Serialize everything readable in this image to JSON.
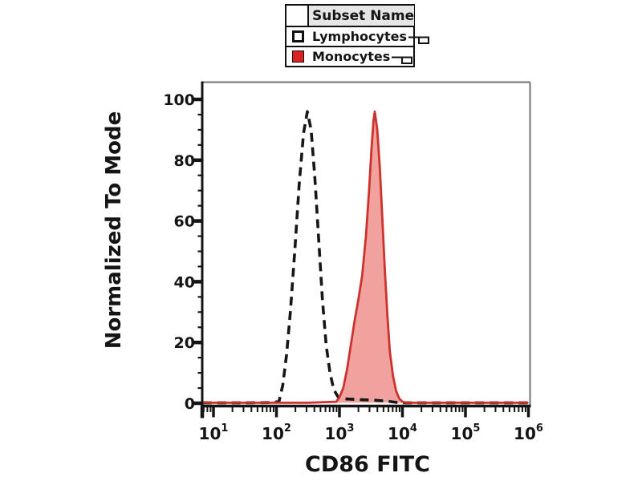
{
  "figure": {
    "background": "#ffffff",
    "plot_border_color": "#7f7f7f",
    "axis_color": "#141414"
  },
  "legend": {
    "header": "Subset Name",
    "header_bg": "#e6e6e6",
    "rows": [
      {
        "label": "Lymphocytes",
        "swatch": "open-square",
        "swatch_fill": "#ffffff",
        "swatch_border": "#111111"
      },
      {
        "label": "Monocytes",
        "swatch": "filled-square",
        "swatch_fill": "#dc2323",
        "swatch_border": "#111111"
      }
    ]
  },
  "axes": {
    "y_label": "Normalized To Mode",
    "x_label": "CD86 FITC",
    "y_major_ticks": [
      0,
      20,
      40,
      60,
      80,
      100
    ],
    "y_minor_step": 5,
    "x_scale": "log10",
    "x_tick_base": "10",
    "x_tick_exponents": [
      1,
      2,
      3,
      4,
      5,
      6
    ],
    "x_minor_multiples": [
      2,
      3,
      4,
      5,
      6,
      7,
      8,
      9
    ]
  },
  "chart_data": {
    "type": "area",
    "title": "",
    "xlabel": "CD86 FITC",
    "ylabel": "Normalized To Mode",
    "x_scale": "log10",
    "x_range_log10": [
      0.83,
      6.0
    ],
    "ylim": [
      0,
      105.5
    ],
    "grid": false,
    "legend_position": "top-center",
    "series": [
      {
        "name": "Lymphocytes",
        "style": "dashed-open",
        "stroke": "#161616",
        "fill": "none",
        "dash": [
          11,
          7
        ],
        "stroke_width": 3.6,
        "peak": {
          "x": 310,
          "y": 96
        },
        "points_log10x_y": [
          [
            0.83,
            0.15
          ],
          [
            1.5,
            0.15
          ],
          [
            1.9,
            0.2
          ],
          [
            2.04,
            0.5
          ],
          [
            2.1,
            6
          ],
          [
            2.16,
            16
          ],
          [
            2.22,
            30
          ],
          [
            2.29,
            50
          ],
          [
            2.36,
            72
          ],
          [
            2.43,
            89
          ],
          [
            2.49,
            96
          ],
          [
            2.55,
            90
          ],
          [
            2.61,
            74
          ],
          [
            2.67,
            54
          ],
          [
            2.73,
            34
          ],
          [
            2.79,
            19
          ],
          [
            2.85,
            10
          ],
          [
            2.91,
            4.5
          ],
          [
            2.98,
            2
          ],
          [
            3.05,
            1.5
          ],
          [
            3.3,
            1.2
          ],
          [
            3.55,
            1.0
          ],
          [
            3.75,
            0.7
          ],
          [
            3.9,
            0.3
          ],
          [
            4.05,
            0.15
          ],
          [
            5.0,
            0.15
          ],
          [
            6.0,
            0.15
          ]
        ]
      },
      {
        "name": "Monocytes",
        "style": "filled",
        "stroke": "#cd322d",
        "fill": "rgba(226,48,39,0.45)",
        "dash": null,
        "stroke_width": 2.8,
        "peak": {
          "x": 3500,
          "y": 96
        },
        "points_log10x_y": [
          [
            0.83,
            0.15
          ],
          [
            1.5,
            0.15
          ],
          [
            2.5,
            0.15
          ],
          [
            2.95,
            0.5
          ],
          [
            3.0,
            2
          ],
          [
            3.06,
            5
          ],
          [
            3.12,
            11
          ],
          [
            3.18,
            19
          ],
          [
            3.24,
            27
          ],
          [
            3.3,
            34
          ],
          [
            3.36,
            42
          ],
          [
            3.42,
            55
          ],
          [
            3.47,
            70
          ],
          [
            3.51,
            84
          ],
          [
            3.54,
            93
          ],
          [
            3.56,
            96
          ],
          [
            3.6,
            90
          ],
          [
            3.64,
            78
          ],
          [
            3.68,
            61
          ],
          [
            3.72,
            44
          ],
          [
            3.76,
            29
          ],
          [
            3.8,
            17
          ],
          [
            3.85,
            9
          ],
          [
            3.9,
            4
          ],
          [
            3.95,
            1.5
          ],
          [
            4.0,
            0.5
          ],
          [
            4.06,
            0.15
          ],
          [
            5.0,
            0.15
          ],
          [
            6.0,
            0.15
          ]
        ]
      }
    ]
  }
}
